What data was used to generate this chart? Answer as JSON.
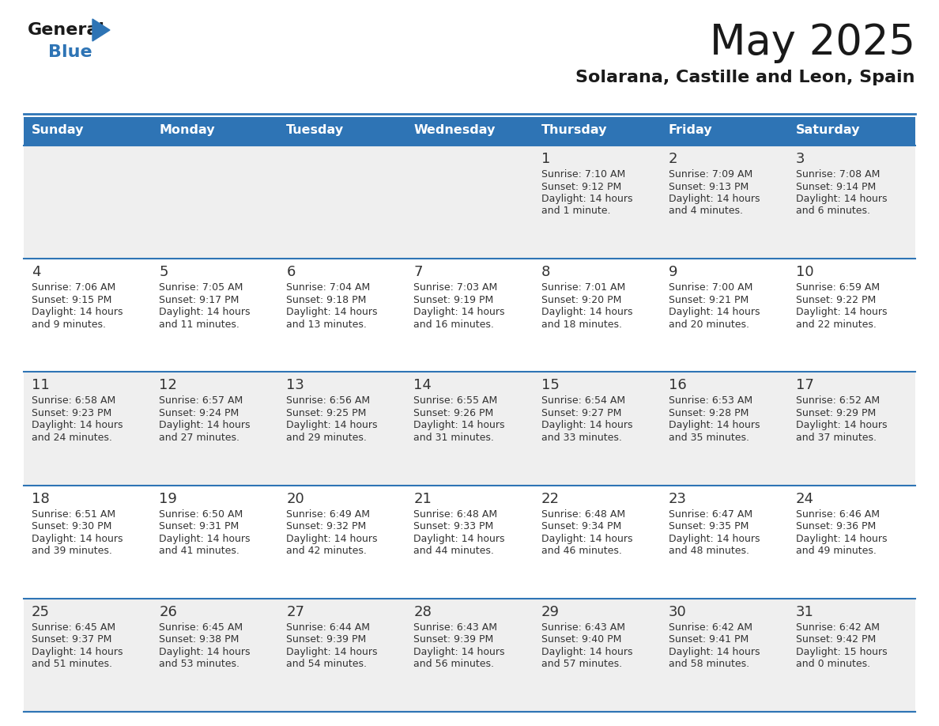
{
  "title": "May 2025",
  "subtitle": "Solarana, Castille and Leon, Spain",
  "days_of_week": [
    "Sunday",
    "Monday",
    "Tuesday",
    "Wednesday",
    "Thursday",
    "Friday",
    "Saturday"
  ],
  "header_bg": "#2E74B5",
  "header_text": "#FFFFFF",
  "row_bg_light": "#EFEFEF",
  "row_bg_white": "#FFFFFF",
  "cell_text_color": "#333333",
  "border_color": "#2E74B5",
  "title_color": "#1A1A1A",
  "subtitle_color": "#1A1A1A",
  "logo_black": "#1A1A1A",
  "logo_blue": "#2E74B5",
  "calendar_data": [
    [
      null,
      null,
      null,
      null,
      {
        "day": 1,
        "sunrise": "7:10 AM",
        "sunset": "9:12 PM",
        "daylight": "14 hours",
        "daylight2": "and 1 minute."
      },
      {
        "day": 2,
        "sunrise": "7:09 AM",
        "sunset": "9:13 PM",
        "daylight": "14 hours",
        "daylight2": "and 4 minutes."
      },
      {
        "day": 3,
        "sunrise": "7:08 AM",
        "sunset": "9:14 PM",
        "daylight": "14 hours",
        "daylight2": "and 6 minutes."
      }
    ],
    [
      {
        "day": 4,
        "sunrise": "7:06 AM",
        "sunset": "9:15 PM",
        "daylight": "14 hours",
        "daylight2": "and 9 minutes."
      },
      {
        "day": 5,
        "sunrise": "7:05 AM",
        "sunset": "9:17 PM",
        "daylight": "14 hours",
        "daylight2": "and 11 minutes."
      },
      {
        "day": 6,
        "sunrise": "7:04 AM",
        "sunset": "9:18 PM",
        "daylight": "14 hours",
        "daylight2": "and 13 minutes."
      },
      {
        "day": 7,
        "sunrise": "7:03 AM",
        "sunset": "9:19 PM",
        "daylight": "14 hours",
        "daylight2": "and 16 minutes."
      },
      {
        "day": 8,
        "sunrise": "7:01 AM",
        "sunset": "9:20 PM",
        "daylight": "14 hours",
        "daylight2": "and 18 minutes."
      },
      {
        "day": 9,
        "sunrise": "7:00 AM",
        "sunset": "9:21 PM",
        "daylight": "14 hours",
        "daylight2": "and 20 minutes."
      },
      {
        "day": 10,
        "sunrise": "6:59 AM",
        "sunset": "9:22 PM",
        "daylight": "14 hours",
        "daylight2": "and 22 minutes."
      }
    ],
    [
      {
        "day": 11,
        "sunrise": "6:58 AM",
        "sunset": "9:23 PM",
        "daylight": "14 hours",
        "daylight2": "and 24 minutes."
      },
      {
        "day": 12,
        "sunrise": "6:57 AM",
        "sunset": "9:24 PM",
        "daylight": "14 hours",
        "daylight2": "and 27 minutes."
      },
      {
        "day": 13,
        "sunrise": "6:56 AM",
        "sunset": "9:25 PM",
        "daylight": "14 hours",
        "daylight2": "and 29 minutes."
      },
      {
        "day": 14,
        "sunrise": "6:55 AM",
        "sunset": "9:26 PM",
        "daylight": "14 hours",
        "daylight2": "and 31 minutes."
      },
      {
        "day": 15,
        "sunrise": "6:54 AM",
        "sunset": "9:27 PM",
        "daylight": "14 hours",
        "daylight2": "and 33 minutes."
      },
      {
        "day": 16,
        "sunrise": "6:53 AM",
        "sunset": "9:28 PM",
        "daylight": "14 hours",
        "daylight2": "and 35 minutes."
      },
      {
        "day": 17,
        "sunrise": "6:52 AM",
        "sunset": "9:29 PM",
        "daylight": "14 hours",
        "daylight2": "and 37 minutes."
      }
    ],
    [
      {
        "day": 18,
        "sunrise": "6:51 AM",
        "sunset": "9:30 PM",
        "daylight": "14 hours",
        "daylight2": "and 39 minutes."
      },
      {
        "day": 19,
        "sunrise": "6:50 AM",
        "sunset": "9:31 PM",
        "daylight": "14 hours",
        "daylight2": "and 41 minutes."
      },
      {
        "day": 20,
        "sunrise": "6:49 AM",
        "sunset": "9:32 PM",
        "daylight": "14 hours",
        "daylight2": "and 42 minutes."
      },
      {
        "day": 21,
        "sunrise": "6:48 AM",
        "sunset": "9:33 PM",
        "daylight": "14 hours",
        "daylight2": "and 44 minutes."
      },
      {
        "day": 22,
        "sunrise": "6:48 AM",
        "sunset": "9:34 PM",
        "daylight": "14 hours",
        "daylight2": "and 46 minutes."
      },
      {
        "day": 23,
        "sunrise": "6:47 AM",
        "sunset": "9:35 PM",
        "daylight": "14 hours",
        "daylight2": "and 48 minutes."
      },
      {
        "day": 24,
        "sunrise": "6:46 AM",
        "sunset": "9:36 PM",
        "daylight": "14 hours",
        "daylight2": "and 49 minutes."
      }
    ],
    [
      {
        "day": 25,
        "sunrise": "6:45 AM",
        "sunset": "9:37 PM",
        "daylight": "14 hours",
        "daylight2": "and 51 minutes."
      },
      {
        "day": 26,
        "sunrise": "6:45 AM",
        "sunset": "9:38 PM",
        "daylight": "14 hours",
        "daylight2": "and 53 minutes."
      },
      {
        "day": 27,
        "sunrise": "6:44 AM",
        "sunset": "9:39 PM",
        "daylight": "14 hours",
        "daylight2": "and 54 minutes."
      },
      {
        "day": 28,
        "sunrise": "6:43 AM",
        "sunset": "9:39 PM",
        "daylight": "14 hours",
        "daylight2": "and 56 minutes."
      },
      {
        "day": 29,
        "sunrise": "6:43 AM",
        "sunset": "9:40 PM",
        "daylight": "14 hours",
        "daylight2": "and 57 minutes."
      },
      {
        "day": 30,
        "sunrise": "6:42 AM",
        "sunset": "9:41 PM",
        "daylight": "14 hours",
        "daylight2": "and 58 minutes."
      },
      {
        "day": 31,
        "sunrise": "6:42 AM",
        "sunset": "9:42 PM",
        "daylight": "15 hours",
        "daylight2": "and 0 minutes."
      }
    ]
  ]
}
